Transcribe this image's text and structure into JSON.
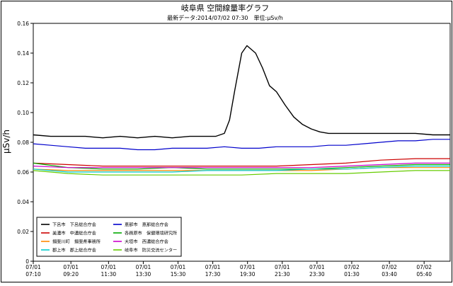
{
  "chart_data": {
    "type": "line",
    "title": "岐阜県 空間線量率グラフ",
    "subtitle": "最新データ:2014/07/02 07:30　単位:μSv/h",
    "ylabel": "μSv/h",
    "xlabel": "",
    "ylim": [
      0,
      0.16
    ],
    "yticks": [
      "0",
      "0.02",
      "0.04",
      "0.06",
      "0.08",
      "0.10",
      "0.12",
      "0.14",
      "0.16"
    ],
    "xlim": [
      0,
      24
    ],
    "xticks": [
      {
        "date": "07/01",
        "time": "07:10",
        "x": 0
      },
      {
        "date": "07/01",
        "time": "09:20",
        "x": 2.1667
      },
      {
        "date": "07/01",
        "time": "11:30",
        "x": 4.3333
      },
      {
        "date": "07/01",
        "time": "13:30",
        "x": 6.3333
      },
      {
        "date": "07/01",
        "time": "15:30",
        "x": 8.3333
      },
      {
        "date": "07/01",
        "time": "17:30",
        "x": 10.3333
      },
      {
        "date": "07/01",
        "time": "19:30",
        "x": 12.3333
      },
      {
        "date": "07/01",
        "time": "21:30",
        "x": 14.3333
      },
      {
        "date": "07/01",
        "time": "23:30",
        "x": 16.3333
      },
      {
        "date": "07/02",
        "time": "01:30",
        "x": 18.3333
      },
      {
        "date": "07/02",
        "time": "03:40",
        "x": 20.5
      },
      {
        "date": "07/02",
        "time": "05:40",
        "x": 22.5
      }
    ],
    "grid": false,
    "legend_position": "bottom-left",
    "series": [
      {
        "name": "下呂市　下呂総合庁舎",
        "color": "#000000",
        "points": [
          [
            0,
            0.085
          ],
          [
            1,
            0.084
          ],
          [
            2,
            0.084
          ],
          [
            3,
            0.084
          ],
          [
            4,
            0.083
          ],
          [
            5,
            0.084
          ],
          [
            6,
            0.083
          ],
          [
            7,
            0.084
          ],
          [
            8,
            0.083
          ],
          [
            9,
            0.084
          ],
          [
            10,
            0.084
          ],
          [
            10.5,
            0.084
          ],
          [
            11,
            0.086
          ],
          [
            11.3,
            0.095
          ],
          [
            11.6,
            0.115
          ],
          [
            12,
            0.14
          ],
          [
            12.3,
            0.145
          ],
          [
            12.8,
            0.14
          ],
          [
            13.2,
            0.13
          ],
          [
            13.6,
            0.118
          ],
          [
            14,
            0.114
          ],
          [
            14.5,
            0.105
          ],
          [
            15,
            0.097
          ],
          [
            15.5,
            0.092
          ],
          [
            16,
            0.089
          ],
          [
            16.5,
            0.087
          ],
          [
            17,
            0.086
          ],
          [
            18,
            0.086
          ],
          [
            19,
            0.086
          ],
          [
            20,
            0.086
          ],
          [
            21,
            0.086
          ],
          [
            22,
            0.086
          ],
          [
            23,
            0.085
          ],
          [
            24,
            0.085
          ]
        ]
      },
      {
        "name": "恵那市　恵那総合庁舎",
        "color": "#0000cc",
        "points": [
          [
            0,
            0.079
          ],
          [
            1,
            0.078
          ],
          [
            2,
            0.077
          ],
          [
            3,
            0.076
          ],
          [
            4,
            0.076
          ],
          [
            5,
            0.076
          ],
          [
            6,
            0.075
          ],
          [
            7,
            0.075
          ],
          [
            8,
            0.076
          ],
          [
            9,
            0.076
          ],
          [
            10,
            0.076
          ],
          [
            11,
            0.077
          ],
          [
            12,
            0.076
          ],
          [
            13,
            0.076
          ],
          [
            14,
            0.077
          ],
          [
            15,
            0.077
          ],
          [
            16,
            0.077
          ],
          [
            17,
            0.078
          ],
          [
            18,
            0.078
          ],
          [
            19,
            0.079
          ],
          [
            20,
            0.08
          ],
          [
            21,
            0.081
          ],
          [
            22,
            0.081
          ],
          [
            23,
            0.082
          ],
          [
            24,
            0.082
          ]
        ]
      },
      {
        "name": "美濃市　中濃総合庁舎",
        "color": "#cc0000",
        "points": [
          [
            0,
            0.066
          ],
          [
            2,
            0.065
          ],
          [
            4,
            0.064
          ],
          [
            6,
            0.064
          ],
          [
            8,
            0.064
          ],
          [
            10,
            0.064
          ],
          [
            12,
            0.064
          ],
          [
            14,
            0.064
          ],
          [
            16,
            0.065
          ],
          [
            18,
            0.066
          ],
          [
            20,
            0.068
          ],
          [
            22,
            0.069
          ],
          [
            24,
            0.069
          ]
        ]
      },
      {
        "name": "各務原市　保健環境研究所",
        "color": "#00aa00",
        "points": [
          [
            0,
            0.066
          ],
          [
            2,
            0.063
          ],
          [
            4,
            0.062
          ],
          [
            6,
            0.062
          ],
          [
            8,
            0.063
          ],
          [
            10,
            0.062
          ],
          [
            12,
            0.062
          ],
          [
            14,
            0.062
          ],
          [
            16,
            0.062
          ],
          [
            18,
            0.063
          ],
          [
            20,
            0.064
          ],
          [
            22,
            0.065
          ],
          [
            24,
            0.065
          ]
        ]
      },
      {
        "name": "揖斐川町　揖斐県事務所",
        "color": "#ff8800",
        "points": [
          [
            0,
            0.062
          ],
          [
            2,
            0.061
          ],
          [
            4,
            0.061
          ],
          [
            6,
            0.061
          ],
          [
            8,
            0.061
          ],
          [
            10,
            0.061
          ],
          [
            12,
            0.061
          ],
          [
            14,
            0.061
          ],
          [
            16,
            0.061
          ],
          [
            18,
            0.062
          ],
          [
            20,
            0.063
          ],
          [
            22,
            0.063
          ],
          [
            24,
            0.063
          ]
        ]
      },
      {
        "name": "大垣市　西濃総合庁舎",
        "color": "#cc00cc",
        "points": [
          [
            0,
            0.064
          ],
          [
            2,
            0.063
          ],
          [
            4,
            0.063
          ],
          [
            6,
            0.063
          ],
          [
            8,
            0.063
          ],
          [
            10,
            0.063
          ],
          [
            12,
            0.063
          ],
          [
            14,
            0.063
          ],
          [
            16,
            0.063
          ],
          [
            18,
            0.064
          ],
          [
            20,
            0.065
          ],
          [
            22,
            0.066
          ],
          [
            24,
            0.066
          ]
        ]
      },
      {
        "name": "郡上市　郡上総合庁舎",
        "color": "#00cccc",
        "points": [
          [
            0,
            0.062
          ],
          [
            2,
            0.06
          ],
          [
            4,
            0.06
          ],
          [
            6,
            0.06
          ],
          [
            8,
            0.06
          ],
          [
            10,
            0.061
          ],
          [
            12,
            0.061
          ],
          [
            14,
            0.061
          ],
          [
            16,
            0.062
          ],
          [
            18,
            0.062
          ],
          [
            20,
            0.063
          ],
          [
            22,
            0.064
          ],
          [
            24,
            0.064
          ]
        ]
      },
      {
        "name": "岐阜市　防災交流センター",
        "color": "#66cc00",
        "points": [
          [
            0,
            0.061
          ],
          [
            2,
            0.059
          ],
          [
            4,
            0.058
          ],
          [
            6,
            0.058
          ],
          [
            8,
            0.058
          ],
          [
            10,
            0.058
          ],
          [
            12,
            0.058
          ],
          [
            14,
            0.059
          ],
          [
            16,
            0.059
          ],
          [
            18,
            0.059
          ],
          [
            20,
            0.06
          ],
          [
            22,
            0.061
          ],
          [
            24,
            0.061
          ]
        ]
      }
    ]
  }
}
